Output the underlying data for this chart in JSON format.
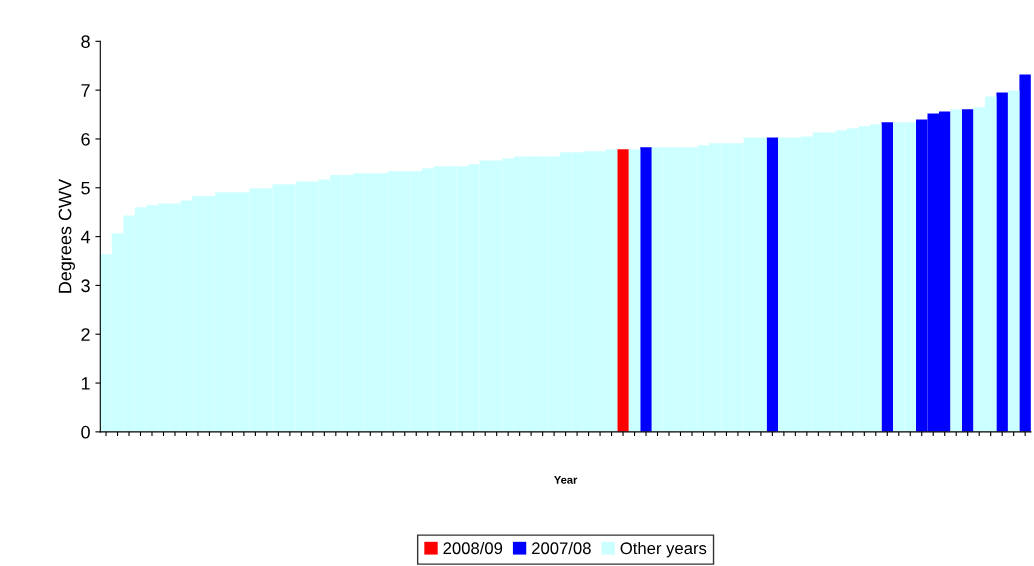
{
  "chart_data": {
    "type": "bar",
    "xlabel": "Year",
    "ylabel": "Degrees CWV",
    "categories": [
      null,
      null,
      null,
      null,
      null,
      null,
      null,
      null,
      null,
      null,
      null,
      null,
      null,
      null,
      null,
      null,
      null,
      null,
      null,
      null,
      null,
      null,
      null,
      null,
      null,
      null,
      null,
      null,
      null,
      null,
      null,
      null,
      null,
      null,
      null,
      null,
      null,
      null,
      null,
      null,
      null,
      null,
      null,
      null,
      null,
      null,
      null,
      null,
      null,
      null,
      null,
      null,
      null,
      null,
      null,
      null,
      null,
      null,
      null,
      null,
      null,
      null,
      null,
      null,
      null,
      null,
      null,
      null,
      null,
      null,
      null,
      null,
      null,
      null,
      null,
      null,
      null,
      null,
      null,
      null,
      null
    ],
    "series": [
      {
        "name": "2008/09",
        "color": "#ff0000",
        "values": [
          null,
          null,
          null,
          null,
          null,
          null,
          null,
          null,
          null,
          null,
          null,
          null,
          null,
          null,
          null,
          null,
          null,
          null,
          null,
          null,
          null,
          null,
          null,
          null,
          null,
          null,
          null,
          null,
          null,
          null,
          null,
          null,
          null,
          null,
          null,
          null,
          null,
          null,
          null,
          null,
          null,
          null,
          null,
          null,
          null,
          5.79,
          null,
          null,
          null,
          null,
          null,
          null,
          null,
          null,
          null,
          null,
          null,
          null,
          null,
          null,
          null,
          null,
          null,
          null,
          null,
          null,
          null,
          null,
          null,
          null,
          null,
          null,
          null,
          null,
          null,
          null,
          null,
          null,
          null,
          null,
          null
        ]
      },
      {
        "name": "2007/08",
        "color": "#0000ff",
        "values": [
          null,
          null,
          null,
          null,
          null,
          null,
          null,
          null,
          null,
          null,
          null,
          null,
          null,
          null,
          null,
          null,
          null,
          null,
          null,
          null,
          null,
          null,
          null,
          null,
          null,
          null,
          null,
          null,
          null,
          null,
          null,
          null,
          null,
          null,
          null,
          null,
          null,
          null,
          null,
          null,
          null,
          null,
          null,
          null,
          null,
          null,
          null,
          5.83,
          null,
          null,
          null,
          null,
          null,
          null,
          null,
          null,
          null,
          null,
          6.03,
          null,
          null,
          null,
          null,
          null,
          null,
          null,
          null,
          null,
          6.34,
          null,
          null,
          6.4,
          6.52,
          6.56,
          null,
          6.61,
          null,
          null,
          6.95,
          null,
          7.32
        ]
      },
      {
        "name": "Other years",
        "color": "#ccffff",
        "values": [
          3.64,
          4.07,
          4.43,
          4.6,
          4.64,
          4.68,
          4.68,
          4.74,
          4.83,
          4.83,
          4.91,
          4.91,
          4.91,
          4.99,
          4.99,
          5.07,
          5.07,
          5.13,
          5.13,
          5.17,
          5.26,
          5.26,
          5.3,
          5.3,
          5.3,
          5.34,
          5.34,
          5.34,
          5.4,
          5.44,
          5.44,
          5.44,
          5.48,
          5.56,
          5.56,
          5.6,
          5.64,
          5.64,
          5.64,
          5.64,
          5.73,
          5.73,
          5.75,
          5.75,
          5.79,
          null,
          5.79,
          null,
          5.83,
          5.83,
          5.83,
          5.83,
          5.87,
          5.91,
          5.91,
          5.91,
          6.03,
          6.03,
          null,
          6.03,
          6.03,
          6.05,
          6.13,
          6.13,
          6.18,
          6.22,
          6.26,
          6.3,
          null,
          6.34,
          6.34,
          null,
          null,
          null,
          6.61,
          null,
          6.65,
          6.87,
          null,
          6.99,
          null
        ]
      }
    ],
    "ylim": [
      0,
      8
    ],
    "yticks": [
      0,
      1,
      2,
      3,
      4,
      5,
      6,
      7,
      8
    ],
    "grid": false,
    "legend": "bottom"
  }
}
